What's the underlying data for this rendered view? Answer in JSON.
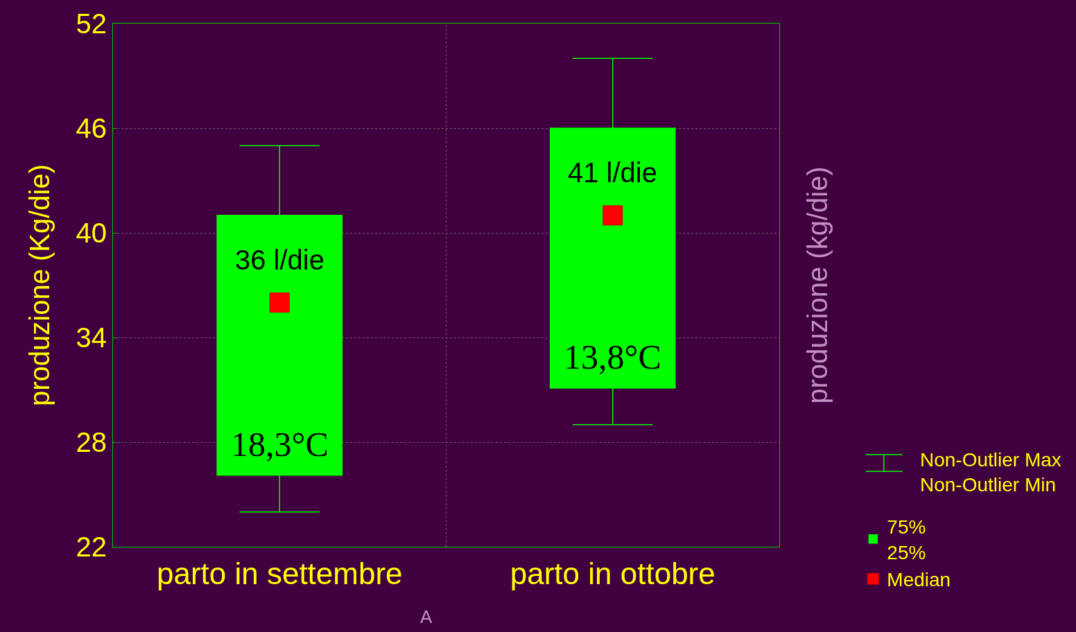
{
  "chart_data": {
    "type": "box",
    "ylabel": "produzione (Kg/die)",
    "y2label": "produzione (kg/die)",
    "categories": [
      "parto in settembre",
      "parto in ottobre"
    ],
    "ylim": [
      22,
      52
    ],
    "yticks": [
      22,
      28,
      34,
      40,
      46,
      52
    ],
    "grid": true,
    "legend": "bottom right",
    "series": [
      {
        "name": "75%\n25%",
        "color": "#00ff00",
        "boxes": [
          {
            "low": 24,
            "q1": 26.1,
            "q3": 41,
            "high": 45
          },
          {
            "low": 29,
            "q1": 31.1,
            "q3": 46,
            "high": 50
          }
        ]
      },
      {
        "name": "Median",
        "type": "scatter",
        "marker": "square",
        "color": "#ff0000",
        "x": [
          "parto in settembre",
          "parto in ottobre"
        ],
        "values": [
          36,
          41
        ]
      }
    ],
    "annotations": [
      "36 l/die",
      "18,3°C",
      "41 l/die",
      "13,8°C",
      "Non-Outlier Max\nNon-Outlier Min",
      "A"
    ]
  }
}
